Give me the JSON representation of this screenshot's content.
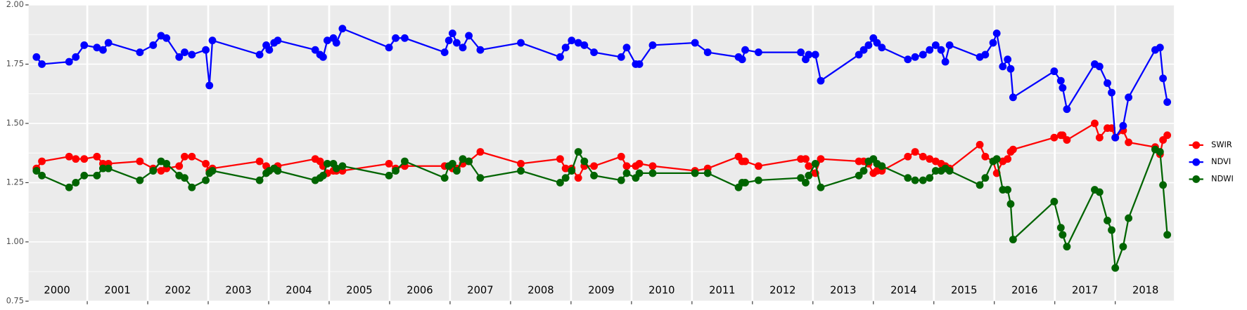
{
  "chart_data": {
    "type": "line",
    "x": [
      2000.16,
      2000.25,
      2000.7,
      2000.81,
      2000.95,
      2001.16,
      2001.26,
      2001.35,
      2001.87,
      2002.09,
      2002.22,
      2002.31,
      2002.52,
      2002.61,
      2002.73,
      2002.96,
      2003.02,
      2003.07,
      2003.85,
      2003.96,
      2004.01,
      2004.09,
      2004.15,
      2004.77,
      2004.85,
      2004.9,
      2004.97,
      2005.07,
      2005.12,
      2005.22,
      2005.99,
      2006.1,
      2006.25,
      2006.91,
      2006.98,
      2007.04,
      2007.11,
      2007.21,
      2007.31,
      2007.5,
      2008.17,
      2008.82,
      2008.91,
      2009.01,
      2009.12,
      2009.22,
      2009.38,
      2009.83,
      2009.92,
      2010.07,
      2010.13,
      2010.35,
      2011.05,
      2011.26,
      2011.77,
      2011.83,
      2011.88,
      2012.1,
      2012.8,
      2012.88,
      2012.93,
      2013.04,
      2013.13,
      2013.76,
      2013.84,
      2013.92,
      2014.0,
      2014.06,
      2014.14,
      2014.57,
      2014.69,
      2014.82,
      2014.93,
      2015.03,
      2015.12,
      2015.19,
      2015.26,
      2015.76,
      2015.85,
      2015.98,
      2016.04,
      2016.14,
      2016.22,
      2016.27,
      2016.31,
      2016.99,
      2017.1,
      2017.13,
      2017.2,
      2017.66,
      2017.74,
      2017.87,
      2017.94,
      2018.0,
      2018.13,
      2018.22,
      2018.66,
      2018.74,
      2018.79,
      2018.86
    ],
    "series": [
      {
        "name": "SWIR",
        "color": "#ff0000",
        "values": [
          1.31,
          1.34,
          1.36,
          1.35,
          1.35,
          1.36,
          1.33,
          1.33,
          1.34,
          1.31,
          1.3,
          1.31,
          1.32,
          1.36,
          1.36,
          1.33,
          1.3,
          1.31,
          1.34,
          1.32,
          1.3,
          1.31,
          1.32,
          1.35,
          1.34,
          1.32,
          1.29,
          1.3,
          1.3,
          1.3,
          1.33,
          1.31,
          1.32,
          1.32,
          1.32,
          1.31,
          1.31,
          1.33,
          1.34,
          1.38,
          1.33,
          1.35,
          1.31,
          1.31,
          1.27,
          1.32,
          1.32,
          1.36,
          1.32,
          1.32,
          1.33,
          1.32,
          1.3,
          1.31,
          1.36,
          1.34,
          1.34,
          1.32,
          1.35,
          1.35,
          1.32,
          1.29,
          1.35,
          1.34,
          1.34,
          1.33,
          1.29,
          1.3,
          1.3,
          1.36,
          1.38,
          1.36,
          1.35,
          1.34,
          1.33,
          1.32,
          1.31,
          1.41,
          1.36,
          1.34,
          1.29,
          1.34,
          1.35,
          1.38,
          1.39,
          1.44,
          1.45,
          1.45,
          1.43,
          1.5,
          1.44,
          1.48,
          1.48,
          1.44,
          1.47,
          1.42,
          1.4,
          1.37,
          1.43,
          1.45
        ]
      },
      {
        "name": "NDVI",
        "color": "#0000ff",
        "values": [
          1.78,
          1.75,
          1.76,
          1.78,
          1.83,
          1.82,
          1.81,
          1.84,
          1.8,
          1.83,
          1.87,
          1.86,
          1.78,
          1.8,
          1.79,
          1.81,
          1.66,
          1.85,
          1.79,
          1.83,
          1.81,
          1.84,
          1.85,
          1.81,
          1.79,
          1.78,
          1.85,
          1.86,
          1.84,
          1.9,
          1.82,
          1.86,
          1.86,
          1.8,
          1.85,
          1.88,
          1.84,
          1.82,
          1.87,
          1.81,
          1.84,
          1.78,
          1.82,
          1.85,
          1.84,
          1.83,
          1.8,
          1.78,
          1.82,
          1.75,
          1.75,
          1.83,
          1.84,
          1.8,
          1.78,
          1.77,
          1.81,
          1.8,
          1.8,
          1.77,
          1.79,
          1.79,
          1.68,
          1.79,
          1.81,
          1.83,
          1.86,
          1.84,
          1.82,
          1.77,
          1.78,
          1.79,
          1.81,
          1.83,
          1.81,
          1.76,
          1.83,
          1.78,
          1.79,
          1.84,
          1.88,
          1.74,
          1.77,
          1.73,
          1.61,
          1.72,
          1.68,
          1.65,
          1.56,
          1.75,
          1.74,
          1.67,
          1.63,
          1.44,
          1.49,
          1.61,
          1.81,
          1.82,
          1.69,
          1.59
        ]
      },
      {
        "name": "NDWI",
        "color": "#006400",
        "values": [
          1.3,
          1.28,
          1.23,
          1.25,
          1.28,
          1.28,
          1.31,
          1.31,
          1.26,
          1.3,
          1.34,
          1.33,
          1.28,
          1.27,
          1.23,
          1.26,
          1.29,
          1.3,
          1.26,
          1.29,
          1.3,
          1.31,
          1.3,
          1.26,
          1.27,
          1.28,
          1.33,
          1.33,
          1.31,
          1.32,
          1.28,
          1.3,
          1.34,
          1.27,
          1.32,
          1.33,
          1.3,
          1.35,
          1.34,
          1.27,
          1.3,
          1.25,
          1.27,
          1.3,
          1.38,
          1.34,
          1.28,
          1.26,
          1.29,
          1.27,
          1.29,
          1.29,
          1.29,
          1.29,
          1.23,
          1.25,
          1.25,
          1.26,
          1.27,
          1.25,
          1.28,
          1.33,
          1.23,
          1.28,
          1.3,
          1.34,
          1.35,
          1.33,
          1.32,
          1.27,
          1.26,
          1.26,
          1.27,
          1.3,
          1.3,
          1.31,
          1.3,
          1.24,
          1.27,
          1.34,
          1.35,
          1.22,
          1.22,
          1.16,
          1.01,
          1.17,
          1.06,
          1.03,
          0.98,
          1.22,
          1.21,
          1.09,
          1.05,
          0.89,
          0.98,
          1.1,
          1.39,
          1.38,
          1.24,
          1.03
        ]
      }
    ],
    "xlim": [
      2000.03,
      2018.97
    ],
    "xticks": [
      2001,
      2002,
      2003,
      2004,
      2005,
      2006,
      2007,
      2008,
      2009,
      2010,
      2011,
      2012,
      2013,
      2014,
      2015,
      2016,
      2017,
      2018
    ],
    "year_labels": [
      {
        "value": 2000.5,
        "label": "2000"
      },
      {
        "value": 2001.5,
        "label": "2001"
      },
      {
        "value": 2002.5,
        "label": "2002"
      },
      {
        "value": 2003.5,
        "label": "2003"
      },
      {
        "value": 2004.5,
        "label": "2004"
      },
      {
        "value": 2005.5,
        "label": "2005"
      },
      {
        "value": 2006.5,
        "label": "2006"
      },
      {
        "value": 2007.5,
        "label": "2007"
      },
      {
        "value": 2008.5,
        "label": "2008"
      },
      {
        "value": 2009.5,
        "label": "2009"
      },
      {
        "value": 2010.5,
        "label": "2010"
      },
      {
        "value": 2011.5,
        "label": "2011"
      },
      {
        "value": 2012.5,
        "label": "2012"
      },
      {
        "value": 2013.5,
        "label": "2013"
      },
      {
        "value": 2014.5,
        "label": "2014"
      },
      {
        "value": 2015.5,
        "label": "2015"
      },
      {
        "value": 2016.5,
        "label": "2016"
      },
      {
        "value": 2017.5,
        "label": "2017"
      },
      {
        "value": 2018.5,
        "label": "2018"
      }
    ],
    "ylim": [
      0.75,
      2.0
    ],
    "yticks": [
      0.75,
      {
        "value": 1,
        "label": "1.00"
      },
      1.25,
      {
        "value": 1.5,
        "label": "1.50"
      },
      1.75,
      {
        "value": 2,
        "label": "2.00"
      }
    ],
    "minor_yticks": [
      0.875,
      1.125,
      1.375,
      1.625,
      1.875
    ],
    "grid": true,
    "legend": "right"
  }
}
